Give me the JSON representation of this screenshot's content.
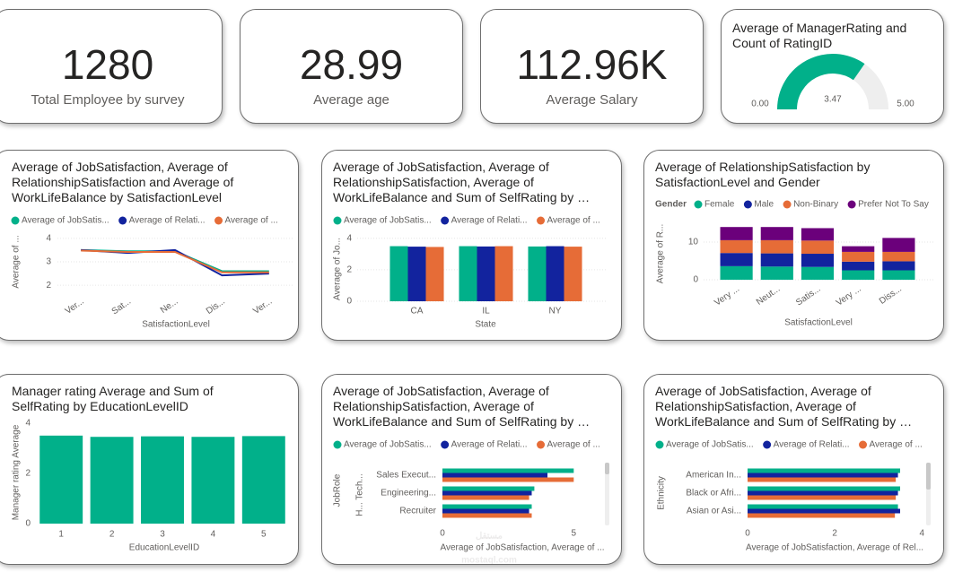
{
  "cards": [
    {
      "value": "1280",
      "label": "Total Employee by survey"
    },
    {
      "value": "28.99",
      "label": "Average age"
    },
    {
      "value": "112.96K",
      "label": "Average Salary"
    }
  ],
  "chart_data": [
    {
      "type": "gauge",
      "title": "Average of ManagerRating and Count of RatingID",
      "values": [
        3.47
      ],
      "value_labels": [
        "3.47"
      ],
      "ylim": [
        0,
        5
      ],
      "yticks": [
        {
          "value": 0,
          "label": "0.00"
        },
        {
          "value": 5,
          "label": "5.00"
        }
      ],
      "color": "#01b08a",
      "track_color": "#eeeeee"
    },
    {
      "type": "line",
      "title": "Average of JobSatisfaction, Average of RelationshipSatisfaction and Average of WorkLifeBalance by SatisfactionLevel",
      "x_label": "SatisfactionLevel",
      "y_label": "Average of ...",
      "categories": [
        "Ver...",
        "Sat...",
        "Ne...",
        "Dis...",
        "Ver..."
      ],
      "series": [
        {
          "name": "Average of JobSatis...",
          "color": "#01b08a",
          "values": [
            3.5,
            3.45,
            3.45,
            2.6,
            2.6
          ]
        },
        {
          "name": "Average of Relati...",
          "color": "#12239e",
          "values": [
            3.5,
            3.38,
            3.5,
            2.42,
            2.5
          ]
        },
        {
          "name": "Average of ...",
          "color": "#e66c37",
          "values": [
            3.48,
            3.42,
            3.42,
            2.55,
            2.55
          ]
        }
      ],
      "ylim": [
        1.7,
        4.3
      ],
      "yticks": [
        2,
        3,
        4
      ],
      "grid": true
    },
    {
      "type": "bar",
      "title": "Average of JobSatisfaction, Average of RelationshipSatisfaction, Average of WorkLifeBalance and Sum of SelfRating by …",
      "x_label": "State",
      "y_label": "Average of Jo...",
      "categories": [
        "CA",
        "IL",
        "NY"
      ],
      "series": [
        {
          "name": "Average of JobSatis...",
          "color": "#01b08a",
          "values": [
            3.5,
            3.5,
            3.48
          ]
        },
        {
          "name": "Average of Relati...",
          "color": "#12239e",
          "values": [
            3.47,
            3.48,
            3.5
          ]
        },
        {
          "name": "Average of ...",
          "color": "#e66c37",
          "values": [
            3.45,
            3.5,
            3.47
          ]
        }
      ],
      "ylim": [
        0,
        4.5
      ],
      "yticks": [
        0,
        2,
        4
      ],
      "grid": true
    },
    {
      "type": "stacked_bar",
      "title": "Average of RelationshipSatisfaction by SatisfactionLevel and Gender",
      "legend_title": "Gender",
      "x_label": "SatisfactionLevel",
      "y_label": "Average of R...",
      "categories": [
        "Very ...",
        "Neut...",
        "Satis...",
        "Very ...",
        "Diss..."
      ],
      "series": [
        {
          "name": "Female",
          "color": "#01b08a",
          "values": [
            3.6,
            3.5,
            3.4,
            2.5,
            2.5
          ]
        },
        {
          "name": "Male",
          "color": "#12239e",
          "values": [
            3.5,
            3.5,
            3.5,
            2.3,
            2.4
          ]
        },
        {
          "name": "Non-Binary",
          "color": "#e66c37",
          "values": [
            3.4,
            3.5,
            3.5,
            2.6,
            2.5
          ]
        },
        {
          "name": "Prefer Not To Say",
          "color": "#6b007b",
          "values": [
            3.5,
            3.5,
            3.3,
            1.5,
            3.7
          ]
        }
      ],
      "ylim": [
        0,
        15
      ],
      "yticks": [
        0,
        10
      ],
      "grid": true
    },
    {
      "type": "bar",
      "title": "Manager rating Average and Sum of SelfRating by EducationLevelID",
      "x_label": "EducationLevelID",
      "y_label": "Manager rating Average",
      "categories": [
        "1",
        "2",
        "3",
        "4",
        "5"
      ],
      "values": [
        3.5,
        3.45,
        3.47,
        3.45,
        3.48
      ],
      "color": "#01b08a",
      "ylim": [
        0,
        4.1
      ],
      "yticks": [
        0,
        2,
        4
      ],
      "grid": false
    },
    {
      "type": "hbar",
      "title": "Average of JobSatisfaction, Average of RelationshipSatisfaction, Average of WorkLifeBalance and Sum of SelfRating by …",
      "x_label": "Average of JobSatisfaction, Average of ...",
      "y_label": "JobRole",
      "categories": [
        "Sales Execut...",
        "Engineering...",
        "Recruiter"
      ],
      "clipped_labels": [
        "Tech...",
        "H..."
      ],
      "series": [
        {
          "name": "Average of JobSatis...",
          "color": "#01b08a",
          "values": [
            5,
            3.5,
            3.4
          ]
        },
        {
          "name": "Average of Relati...",
          "color": "#12239e",
          "values": [
            4,
            3.4,
            3.3
          ]
        },
        {
          "name": "Average of ...",
          "color": "#e66c37",
          "values": [
            5,
            3.3,
            3.4
          ]
        }
      ],
      "xlim": [
        0,
        5.4
      ],
      "xticks": [
        0,
        5
      ]
    },
    {
      "type": "hbar",
      "title": "Average of JobSatisfaction, Average of RelationshipSatisfaction, Average of WorkLifeBalance and Sum of SelfRating by …",
      "x_label": "Average of JobSatisfaction, Average of Rel...",
      "y_label": "Ethnicity",
      "categories": [
        "American In...",
        "Black or Afri...",
        "Asian or Asi..."
      ],
      "series": [
        {
          "name": "Average of JobSatis...",
          "color": "#01b08a",
          "values": [
            3.5,
            3.5,
            3.45
          ]
        },
        {
          "name": "Average of Relati...",
          "color": "#12239e",
          "values": [
            3.45,
            3.45,
            3.5
          ]
        },
        {
          "name": "Average of ...",
          "color": "#e66c37",
          "values": [
            3.4,
            3.4,
            3.38
          ]
        }
      ],
      "xlim": [
        0,
        4.2
      ],
      "xticks": [
        0,
        2,
        4
      ]
    }
  ],
  "watermark": {
    "arabic": "مستقل",
    "latin": "mostaql.com"
  }
}
